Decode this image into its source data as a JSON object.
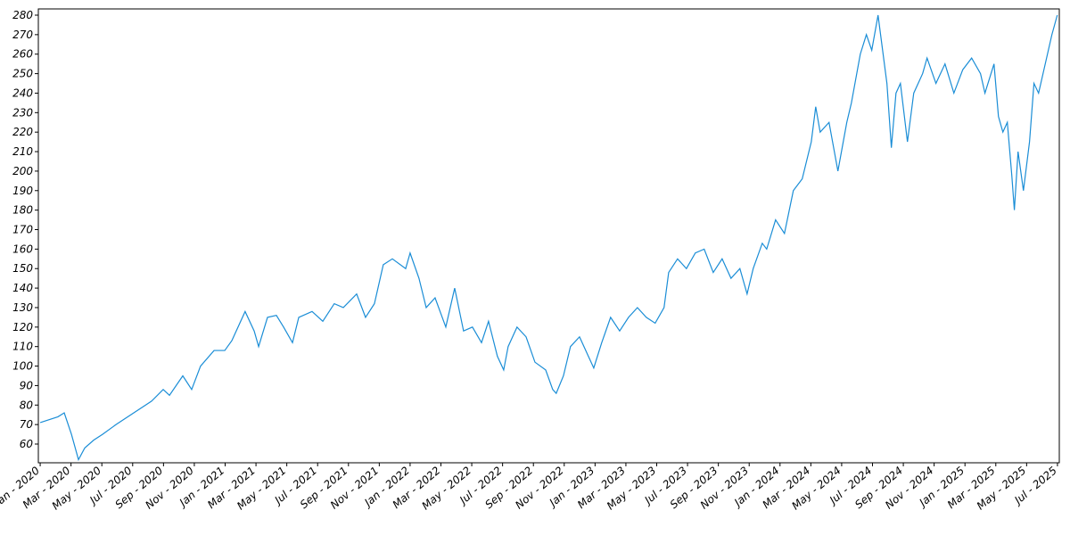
{
  "chart_data": {
    "type": "line",
    "x": [
      2020.0,
      2020.096,
      2020.13,
      2020.169,
      2020.207,
      2020.241,
      2020.289,
      2020.337,
      2020.41,
      2020.506,
      2020.602,
      2020.665,
      2020.699,
      2020.771,
      2020.819,
      2020.867,
      2020.94,
      2020.998,
      2021.036,
      2021.108,
      2021.157,
      2021.181,
      2021.229,
      2021.277,
      2021.316,
      2021.364,
      2021.398,
      2021.47,
      2021.528,
      2021.59,
      2021.639,
      2021.711,
      2021.759,
      2021.807,
      2021.855,
      2021.904,
      2021.976,
      2022.0,
      2022.048,
      2022.087,
      2022.135,
      2022.193,
      2022.241,
      2022.289,
      2022.337,
      2022.386,
      2022.424,
      2022.472,
      2022.506,
      2022.53,
      2022.578,
      2022.627,
      2022.675,
      2022.733,
      2022.771,
      2022.79,
      2022.829,
      2022.867,
      2022.916,
      2022.964,
      2022.993,
      2023.036,
      2023.084,
      2023.133,
      2023.181,
      2023.229,
      2023.277,
      2023.325,
      2023.373,
      2023.398,
      2023.446,
      2023.494,
      2023.542,
      2023.59,
      2023.639,
      2023.687,
      2023.735,
      2023.783,
      2023.822,
      2023.855,
      2023.904,
      2023.928,
      2023.976,
      2024.024,
      2024.072,
      2024.12,
      2024.169,
      2024.193,
      2024.217,
      2024.265,
      2024.313,
      2024.361,
      2024.386,
      2024.434,
      2024.467,
      2024.496,
      2024.53,
      2024.578,
      2024.602,
      2024.627,
      2024.651,
      2024.689,
      2024.723,
      2024.771,
      2024.795,
      2024.843,
      2024.892,
      2024.94,
      2024.988,
      2025.036,
      2025.084,
      2025.108,
      2025.157,
      2025.181,
      2025.205,
      2025.229,
      2025.253,
      2025.267,
      2025.287,
      2025.316,
      2025.349,
      2025.373,
      2025.398,
      2025.446,
      2025.47,
      2025.499
    ],
    "series": [
      {
        "color": "#1a8dd6",
        "values": [
          71,
          74,
          76,
          65,
          52,
          58,
          62,
          65,
          70,
          76,
          82,
          88,
          85,
          95,
          88,
          100,
          108,
          108,
          113,
          128,
          118,
          110,
          125,
          126,
          120,
          112,
          125,
          128,
          123,
          132,
          130,
          137,
          125,
          132,
          152,
          155,
          150,
          158,
          145,
          130,
          135,
          120,
          140,
          118,
          120,
          112,
          123,
          105,
          98,
          110,
          120,
          115,
          102,
          98,
          88,
          86,
          95,
          110,
          115,
          105,
          99,
          112,
          125,
          118,
          125,
          130,
          125,
          122,
          130,
          148,
          155,
          150,
          158,
          160,
          148,
          155,
          145,
          150,
          137,
          150,
          163,
          160,
          175,
          168,
          190,
          196,
          215,
          233,
          220,
          225,
          200,
          225,
          235,
          260,
          270,
          262,
          280,
          245,
          212,
          240,
          245,
          215,
          240,
          250,
          258,
          245,
          255,
          240,
          252,
          258,
          250,
          240,
          255,
          228,
          220,
          225,
          198,
          180,
          210,
          190,
          215,
          245,
          240,
          260,
          270,
          280
        ]
      }
    ],
    "xlim": [
      2019.99,
      2025.51
    ],
    "xticks": [
      {
        "value": 2020.0,
        "label": "Jan - 2020"
      },
      {
        "value": 2020.1667,
        "label": "Mar - 2020"
      },
      {
        "value": 2020.3333,
        "label": "May - 2020"
      },
      {
        "value": 2020.5,
        "label": "Jul - 2020"
      },
      {
        "value": 2020.6667,
        "label": "Sep - 2020"
      },
      {
        "value": 2020.8333,
        "label": "Nov - 2020"
      },
      {
        "value": 2021.0,
        "label": "Jan - 2021"
      },
      {
        "value": 2021.1667,
        "label": "Mar - 2021"
      },
      {
        "value": 2021.3333,
        "label": "May - 2021"
      },
      {
        "value": 2021.5,
        "label": "Jul - 2021"
      },
      {
        "value": 2021.6667,
        "label": "Sep - 2021"
      },
      {
        "value": 2021.8333,
        "label": "Nov - 2021"
      },
      {
        "value": 2022.0,
        "label": "Jan - 2022"
      },
      {
        "value": 2022.1667,
        "label": "Mar - 2022"
      },
      {
        "value": 2022.3333,
        "label": "May - 2022"
      },
      {
        "value": 2022.5,
        "label": "Jul - 2022"
      },
      {
        "value": 2022.6667,
        "label": "Sep - 2022"
      },
      {
        "value": 2022.8333,
        "label": "Nov - 2022"
      },
      {
        "value": 2023.0,
        "label": "Jan - 2023"
      },
      {
        "value": 2023.1667,
        "label": "Mar - 2023"
      },
      {
        "value": 2023.3333,
        "label": "May - 2023"
      },
      {
        "value": 2023.5,
        "label": "Jul - 2023"
      },
      {
        "value": 2023.6667,
        "label": "Sep - 2023"
      },
      {
        "value": 2023.8333,
        "label": "Nov - 2023"
      },
      {
        "value": 2024.0,
        "label": "Jan - 2024"
      },
      {
        "value": 2024.1667,
        "label": "Mar - 2024"
      },
      {
        "value": 2024.3333,
        "label": "May - 2024"
      },
      {
        "value": 2024.5,
        "label": "Jul - 2024"
      },
      {
        "value": 2024.6667,
        "label": "Sep - 2024"
      },
      {
        "value": 2024.8333,
        "label": "Nov - 2024"
      },
      {
        "value": 2025.0,
        "label": "Jan - 2025"
      },
      {
        "value": 2025.1667,
        "label": "Mar - 2025"
      },
      {
        "value": 2025.3333,
        "label": "May - 2025"
      },
      {
        "value": 2025.5,
        "label": "Jul - 2025"
      }
    ],
    "ylim": [
      50.4,
      283.2
    ],
    "yticks": [
      60,
      70,
      80,
      90,
      100,
      110,
      120,
      130,
      140,
      150,
      160,
      170,
      180,
      190,
      200,
      210,
      220,
      230,
      240,
      250,
      260,
      270,
      280
    ],
    "grid": false
  }
}
